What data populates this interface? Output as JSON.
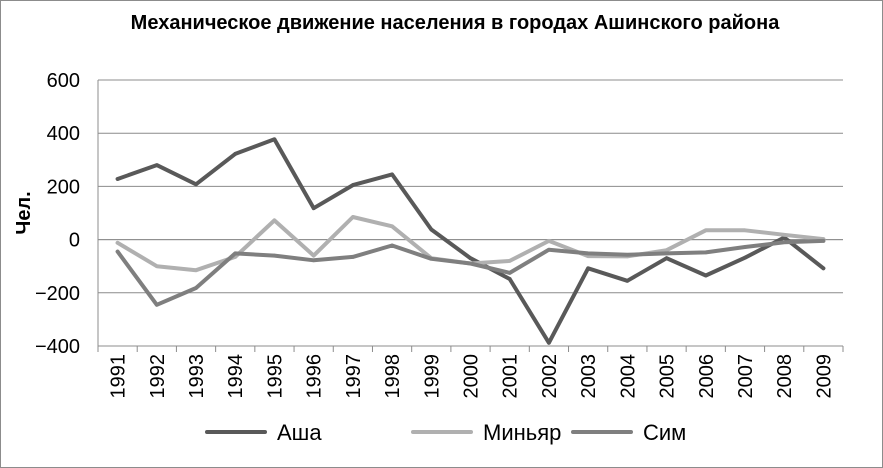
{
  "chart_data": {
    "type": "line",
    "title": "Механическое движение населения в городах Ашинского района",
    "xlabel": "",
    "ylabel": "Чел.",
    "ylim": [
      -400,
      600
    ],
    "yticks": [
      600,
      400,
      200,
      0,
      -200,
      -400
    ],
    "grid": true,
    "legend_position": "bottom",
    "categories": [
      "1991",
      "1992",
      "1993",
      "1994",
      "1995",
      "1996",
      "1997",
      "1998",
      "1999",
      "2000",
      "2001",
      "2002",
      "2003",
      "2004",
      "2005",
      "2006",
      "2007",
      "2008",
      "2009"
    ],
    "series": [
      {
        "name": "Аша",
        "color": "#595959",
        "values": [
          228,
          280,
          208,
          322,
          377,
          118,
          205,
          245,
          38,
          -70,
          -148,
          -388,
          -108,
          -155,
          -70,
          -135,
          -68,
          8,
          -108
        ]
      },
      {
        "name": "Миньяр",
        "color": "#b0b0b0",
        "values": [
          -12,
          -100,
          -115,
          -65,
          72,
          -60,
          85,
          50,
          -70,
          -90,
          -80,
          -5,
          -62,
          -63,
          -40,
          35,
          35,
          18,
          2
        ]
      },
      {
        "name": "Сим",
        "color": "#7f7f7f",
        "values": [
          -45,
          -245,
          -182,
          -52,
          -60,
          -78,
          -65,
          -22,
          -72,
          -90,
          -125,
          -38,
          -52,
          -57,
          -52,
          -48,
          -28,
          -10,
          -5
        ]
      }
    ]
  }
}
